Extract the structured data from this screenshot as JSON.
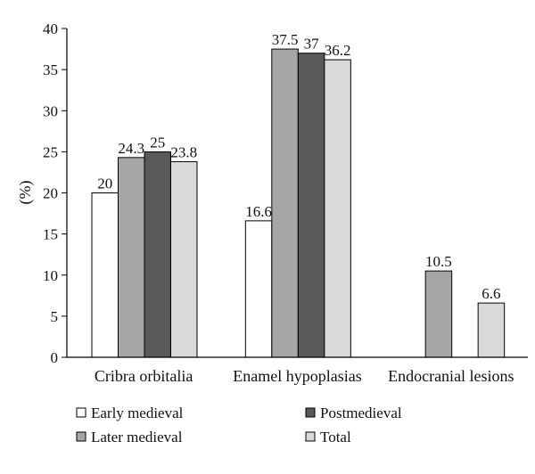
{
  "chart_data": {
    "type": "bar",
    "title": "",
    "xlabel": "",
    "ylabel": "(%)",
    "ylim": [
      0,
      40
    ],
    "yticks": [
      0,
      5,
      10,
      15,
      20,
      25,
      30,
      35,
      40
    ],
    "grid": false,
    "legend_position": "bottom",
    "categories": [
      "Cribra orbitalia",
      "Enamel hypoplasias",
      "Endocranial lesions"
    ],
    "series": [
      {
        "name": "Early medieval",
        "values": [
          20,
          16.6,
          null
        ],
        "labels": [
          "20",
          "16.6",
          ""
        ],
        "color": "#ffffff"
      },
      {
        "name": "Later medieval",
        "values": [
          24.3,
          37.5,
          10.5
        ],
        "labels": [
          "24.3",
          "37.5",
          "10.5"
        ],
        "color": "#a6a6a6"
      },
      {
        "name": "Postmedieval",
        "values": [
          25,
          37,
          null
        ],
        "labels": [
          "25",
          "37",
          ""
        ],
        "color": "#595959"
      },
      {
        "name": "Total",
        "values": [
          23.8,
          36.2,
          6.6
        ],
        "labels": [
          "23.8",
          "36.2",
          "6.6"
        ],
        "color": "#d9d9d9"
      }
    ]
  }
}
